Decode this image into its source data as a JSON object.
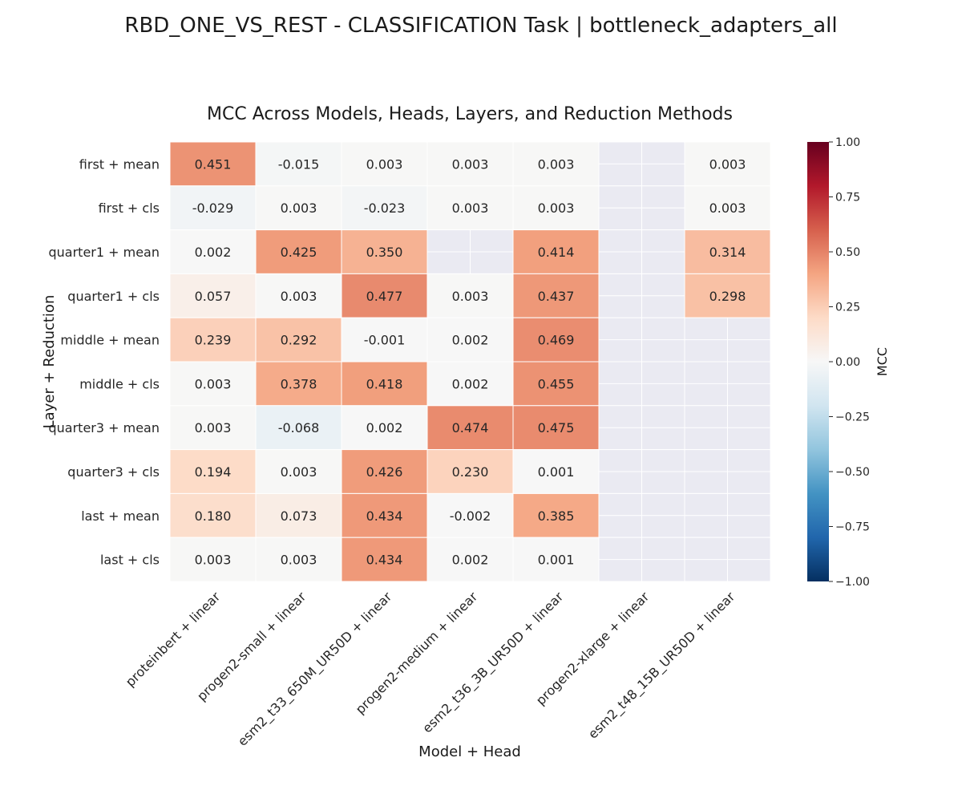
{
  "chart_data": {
    "type": "heatmap",
    "suptitle": "RBD_ONE_VS_REST - CLASSIFICATION Task | bottleneck_adapters_all",
    "title": "MCC Across Models, Heads, Layers, and Reduction Methods",
    "xlabel": "Model + Head",
    "ylabel": "Layer + Reduction",
    "x_categories": [
      "proteinbert + linear",
      "progen2-small + linear",
      "esm2_t33_650M_UR50D + linear",
      "progen2-medium + linear",
      "esm2_t36_3B_UR50D + linear",
      "progen2-xlarge + linear",
      "esm2_t48_15B_UR50D + linear"
    ],
    "y_categories": [
      "first + mean",
      "first + cls",
      "quarter1 + mean",
      "quarter1 + cls",
      "middle + mean",
      "middle + cls",
      "quarter3 + mean",
      "quarter3 + cls",
      "last + mean",
      "last + cls"
    ],
    "values": [
      [
        0.451,
        -0.015,
        0.003,
        0.003,
        0.003,
        null,
        0.003
      ],
      [
        -0.029,
        0.003,
        -0.023,
        0.003,
        0.003,
        null,
        0.003
      ],
      [
        0.002,
        0.425,
        0.35,
        null,
        0.414,
        null,
        0.314
      ],
      [
        0.057,
        0.003,
        0.477,
        0.003,
        0.437,
        null,
        0.298
      ],
      [
        0.239,
        0.292,
        -0.001,
        0.002,
        0.469,
        null,
        null
      ],
      [
        0.003,
        0.378,
        0.418,
        0.002,
        0.455,
        null,
        null
      ],
      [
        0.003,
        -0.068,
        0.002,
        0.474,
        0.475,
        null,
        null
      ],
      [
        0.194,
        0.003,
        0.426,
        0.23,
        0.001,
        null,
        null
      ],
      [
        0.18,
        0.073,
        0.434,
        -0.002,
        0.385,
        null,
        null
      ],
      [
        0.003,
        0.003,
        0.434,
        0.002,
        0.001,
        null,
        null
      ]
    ],
    "colorbar": {
      "label": "MCC",
      "range": [
        -1.0,
        1.0
      ],
      "ticks": [
        "1.00",
        "0.75",
        "0.50",
        "0.25",
        "0.00",
        "−0.25",
        "−0.50",
        "−0.75",
        "−1.00"
      ],
      "colormap": "RdBu_r"
    },
    "missing_color": "#eaeaf2",
    "grid": false
  }
}
